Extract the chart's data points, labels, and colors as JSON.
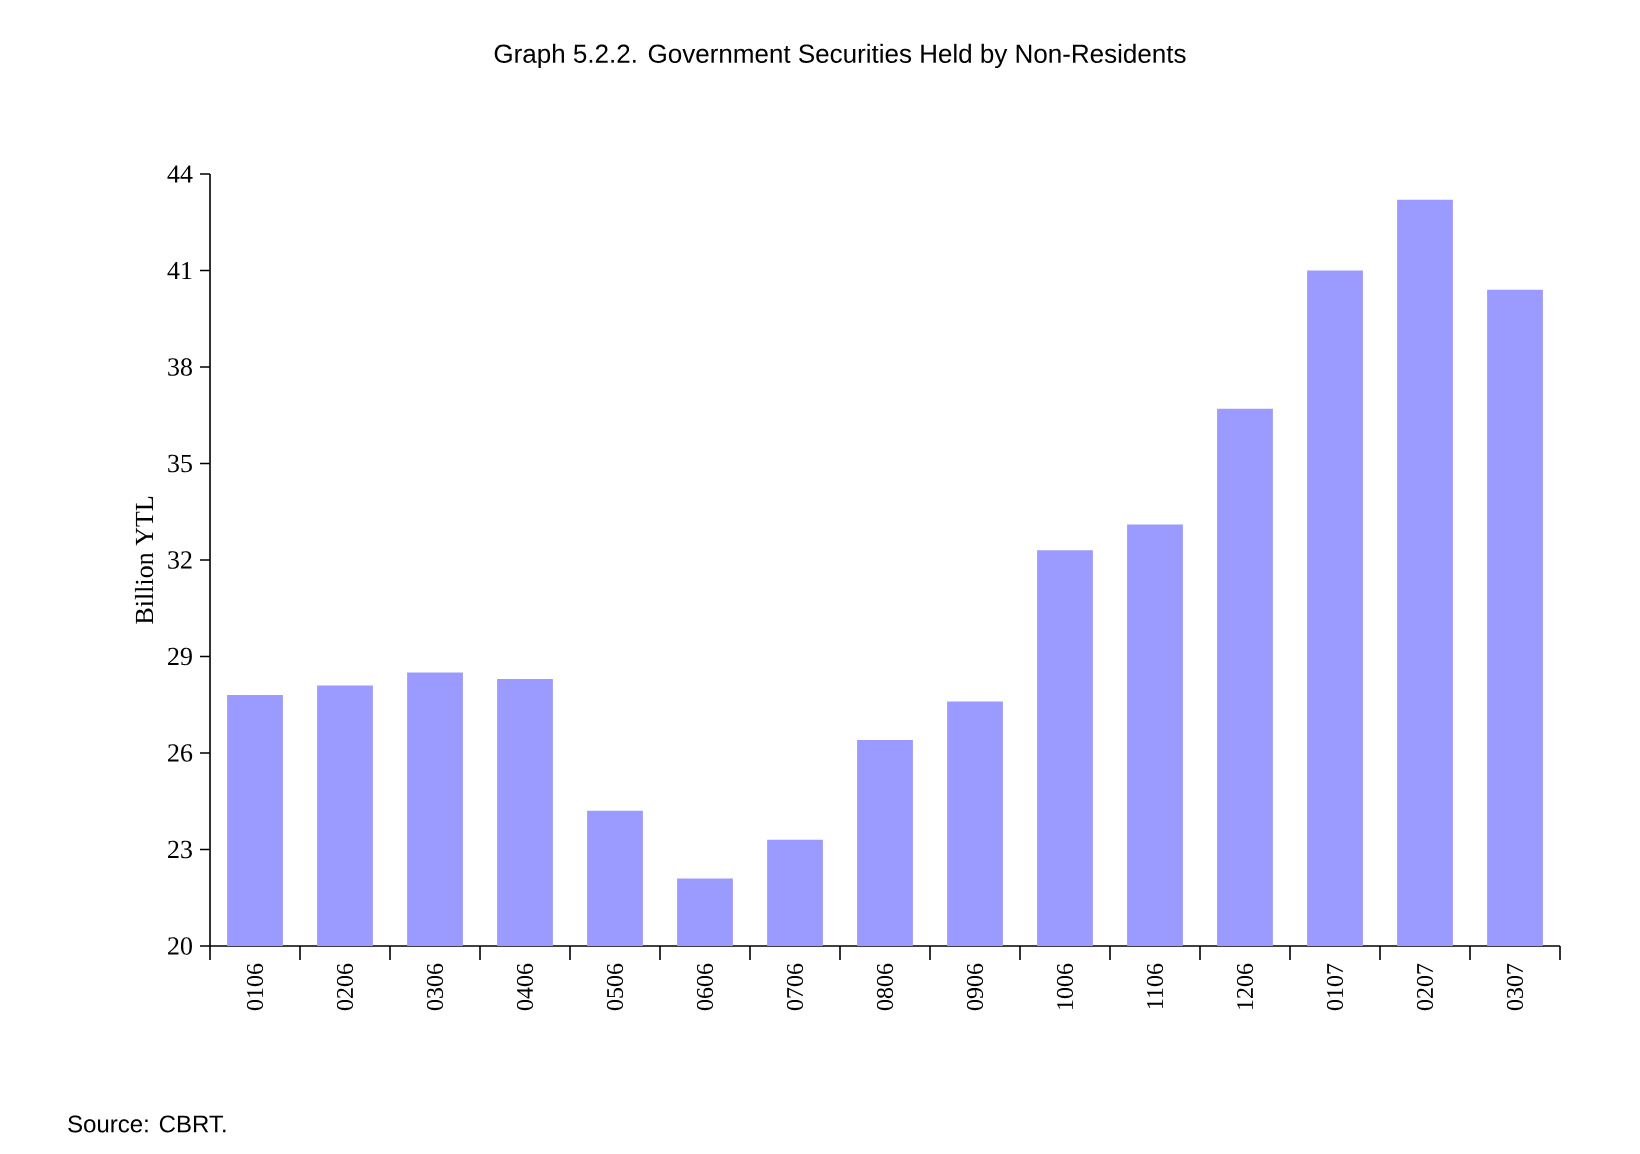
{
  "chart_data": {
    "type": "bar",
    "title": "Graph 5.2.2. Government Securities Held by Non-Residents",
    "ylabel": "Billion YTL",
    "categories": [
      "0106",
      "0206",
      "0306",
      "0406",
      "0506",
      "0606",
      "0706",
      "0806",
      "0906",
      "1006",
      "1106",
      "1206",
      "0107",
      "0207",
      "0307"
    ],
    "values": [
      27.8,
      28.1,
      28.5,
      28.3,
      24.2,
      22.1,
      23.3,
      26.4,
      27.6,
      32.3,
      33.1,
      36.7,
      41.0,
      43.2,
      40.4
    ],
    "color": "#9b9bff",
    "ylim": [
      20,
      44
    ],
    "yticks": [
      20,
      23,
      26,
      29,
      32,
      35,
      38,
      41,
      44
    ],
    "annotations": [
      "Source: CBRT."
    ]
  }
}
